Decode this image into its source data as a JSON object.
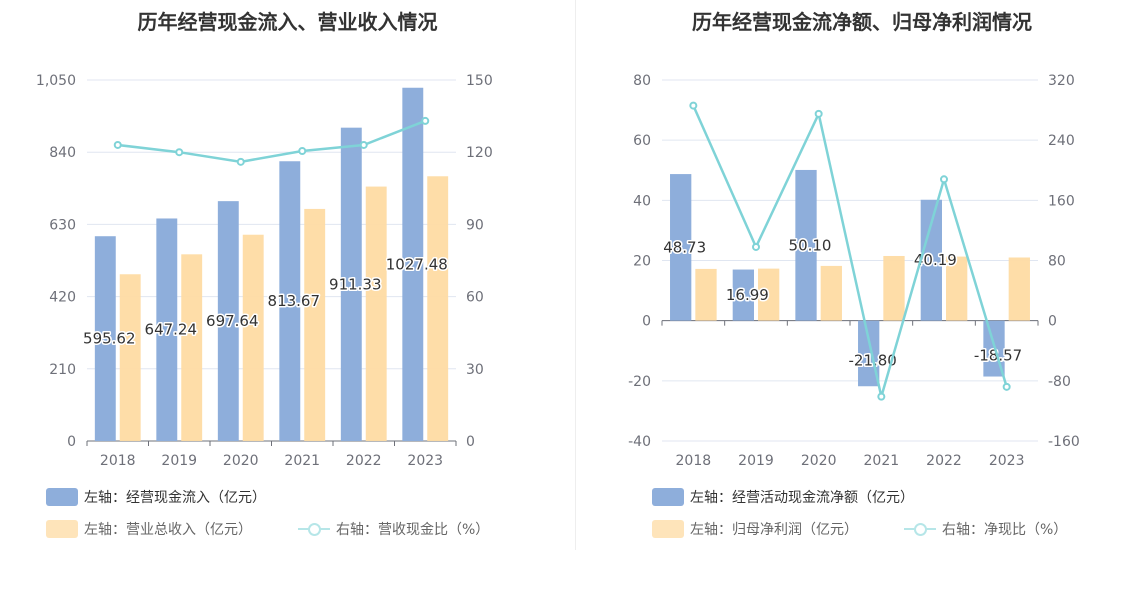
{
  "chart_data": [
    {
      "type": "bar",
      "title": "历年经营现金流入、营业收入情况",
      "categories": [
        "2018",
        "2019",
        "2020",
        "2021",
        "2022",
        "2023"
      ],
      "y_left_ticks": [
        "0",
        "210",
        "420",
        "630",
        "840",
        "1,050"
      ],
      "y_right_ticks": [
        "0",
        "30",
        "60",
        "90",
        "120",
        "150"
      ],
      "ylim_left": [
        0,
        1050
      ],
      "ylim_right": [
        0,
        150
      ],
      "grid": true,
      "legend_position": "bottom-left",
      "series": [
        {
          "name": "左轴：经营现金流入（亿元）",
          "type": "bar",
          "axis": "left",
          "color": "#8eaedb",
          "values": [
            595.62,
            647.24,
            697.64,
            813.67,
            911.33,
            1027.48
          ],
          "labels": [
            "595.62",
            "647.24",
            "697.64",
            "813.67",
            "911.33",
            "1027.48"
          ]
        },
        {
          "name": "左轴：营业总收入（亿元）",
          "type": "bar",
          "axis": "left",
          "color": "#fedba3",
          "values": [
            485,
            543,
            600,
            675,
            740,
            770
          ]
        },
        {
          "name": "右轴：营收现金比（%）",
          "type": "line",
          "axis": "right",
          "color": "#7fd3d7",
          "values": [
            123,
            120,
            116,
            120.5,
            123,
            133
          ]
        }
      ]
    },
    {
      "type": "bar",
      "title": "历年经营现金流净额、归母净利润情况",
      "categories": [
        "2018",
        "2019",
        "2020",
        "2021",
        "2022",
        "2023"
      ],
      "y_left_ticks": [
        "-40",
        "-20",
        "0",
        "20",
        "40",
        "60",
        "80"
      ],
      "y_right_ticks": [
        "-160",
        "-80",
        "0",
        "80",
        "160",
        "240",
        "320"
      ],
      "ylim_left": [
        -40,
        80
      ],
      "ylim_right": [
        -160,
        320
      ],
      "grid": true,
      "legend_position": "bottom-left",
      "series": [
        {
          "name": "左轴：经营活动现金流净额（亿元）",
          "type": "bar",
          "axis": "left",
          "color": "#8eaedb",
          "values": [
            48.73,
            16.99,
            50.1,
            -21.8,
            40.19,
            -18.57
          ],
          "labels": [
            "48.73",
            "16.99",
            "50.10",
            "-21.80",
            "40.19",
            "-18.57"
          ]
        },
        {
          "name": "左轴：归母净利润（亿元）",
          "type": "bar",
          "axis": "left",
          "color": "#fedba3",
          "values": [
            17.2,
            17.3,
            18.2,
            21.5,
            21.3,
            21.0
          ]
        },
        {
          "name": "右轴：净现比（%）",
          "type": "line",
          "axis": "right",
          "color": "#7fd3d7",
          "values": [
            286,
            98,
            275,
            -101,
            188,
            -88
          ]
        }
      ]
    }
  ],
  "legend_text_colors": {
    "active": "#333333",
    "muted": "#666666"
  }
}
